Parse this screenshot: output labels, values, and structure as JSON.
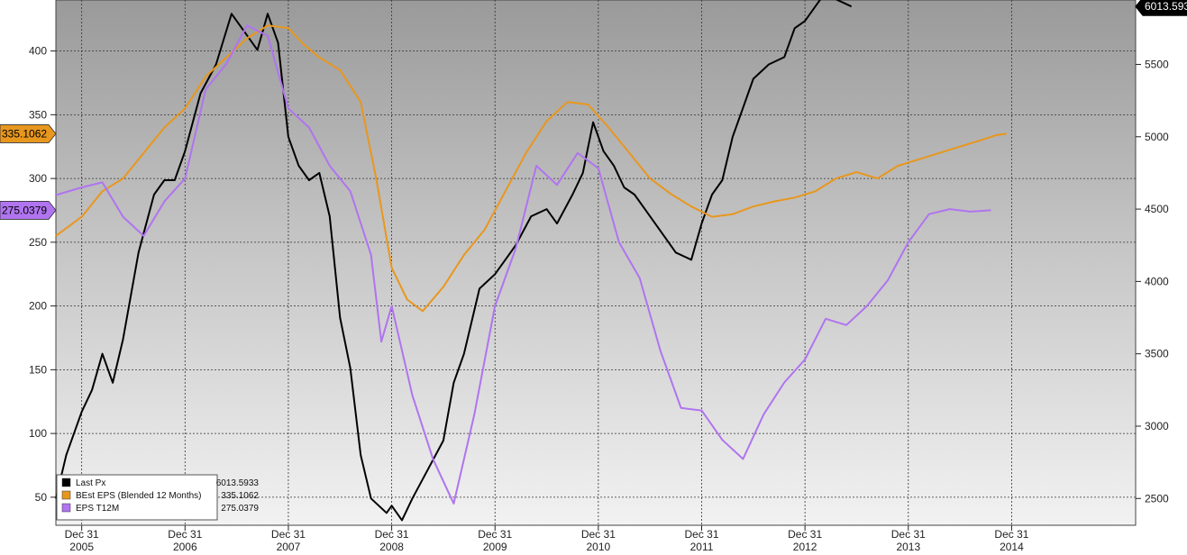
{
  "chart_data": {
    "type": "line",
    "x_labels": [
      {
        "month": "Dec 31",
        "year": "2005"
      },
      {
        "month": "Dec 31",
        "year": "2006"
      },
      {
        "month": "Dec 31",
        "year": "2007"
      },
      {
        "month": "Dec 31",
        "year": "2008"
      },
      {
        "month": "Dec 31",
        "year": "2009"
      },
      {
        "month": "Dec 31",
        "year": "2010"
      },
      {
        "month": "Dec 31",
        "year": "2011"
      },
      {
        "month": "Dec 31",
        "year": "2012"
      },
      {
        "month": "Dec 31",
        "year": "2013"
      },
      {
        "month": "Dec 31",
        "year": "2014"
      }
    ],
    "x_range": [
      2004.75,
      2015.2
    ],
    "left_axis": {
      "ticks": [
        50,
        100,
        150,
        200,
        250,
        300,
        350,
        400
      ],
      "range": [
        28,
        440
      ]
    },
    "right_axis": {
      "ticks": [
        2500,
        3000,
        3500,
        4000,
        4500,
        5000,
        5500
      ],
      "range": [
        2315,
        5945
      ]
    },
    "gridlines": true,
    "legend_position": "bottom-left",
    "series": [
      {
        "name": "Last Px",
        "value": "6013.5933",
        "color": "#000000",
        "axis": "right",
        "tag": "6013.593",
        "points": [
          [
            2004.75,
            2500
          ],
          [
            2004.85,
            2800
          ],
          [
            2005.0,
            3100
          ],
          [
            2005.1,
            3250
          ],
          [
            2005.2,
            3500
          ],
          [
            2005.3,
            3300
          ],
          [
            2005.4,
            3600
          ],
          [
            2005.55,
            4200
          ],
          [
            2005.7,
            4600
          ],
          [
            2005.8,
            4700
          ],
          [
            2005.9,
            4700
          ],
          [
            2006.0,
            4900
          ],
          [
            2006.15,
            5300
          ],
          [
            2006.3,
            5500
          ],
          [
            2006.45,
            5850
          ],
          [
            2006.55,
            5750
          ],
          [
            2006.7,
            5600
          ],
          [
            2006.8,
            5850
          ],
          [
            2006.9,
            5650
          ],
          [
            2007.0,
            5000
          ],
          [
            2007.1,
            4800
          ],
          [
            2007.2,
            4700
          ],
          [
            2007.3,
            4750
          ],
          [
            2007.4,
            4450
          ],
          [
            2007.5,
            3750
          ],
          [
            2007.6,
            3400
          ],
          [
            2007.7,
            2800
          ],
          [
            2007.8,
            2500
          ],
          [
            2007.95,
            2400
          ],
          [
            2008.0,
            2450
          ],
          [
            2008.1,
            2350
          ],
          [
            2008.2,
            2500
          ],
          [
            2008.35,
            2700
          ],
          [
            2008.5,
            2900
          ],
          [
            2008.6,
            3300
          ],
          [
            2008.7,
            3500
          ],
          [
            2008.85,
            3950
          ],
          [
            2009.0,
            4050
          ],
          [
            2009.1,
            4150
          ],
          [
            2009.2,
            4250
          ],
          [
            2009.35,
            4450
          ],
          [
            2009.5,
            4500
          ],
          [
            2009.6,
            4400
          ],
          [
            2009.75,
            4600
          ],
          [
            2009.85,
            4750
          ],
          [
            2009.95,
            5100
          ],
          [
            2010.05,
            4900
          ],
          [
            2010.15,
            4800
          ],
          [
            2010.25,
            4650
          ],
          [
            2010.35,
            4600
          ],
          [
            2010.45,
            4500
          ],
          [
            2010.55,
            4400
          ],
          [
            2010.65,
            4300
          ],
          [
            2010.75,
            4200
          ],
          [
            2010.9,
            4150
          ],
          [
            2011.0,
            4400
          ],
          [
            2011.1,
            4600
          ],
          [
            2011.2,
            4700
          ],
          [
            2011.3,
            5000
          ],
          [
            2011.4,
            5200
          ],
          [
            2011.5,
            5400
          ],
          [
            2011.65,
            5500
          ],
          [
            2011.8,
            5550
          ],
          [
            2011.9,
            5750
          ],
          [
            2012.0,
            5800
          ],
          [
            2012.1,
            5900
          ],
          [
            2012.2,
            6000
          ],
          [
            2012.3,
            5950
          ],
          [
            2012.45,
            5900
          ]
        ]
      },
      {
        "name": "BEst EPS (Blended 12 Months)",
        "value": "335.1062",
        "color": "#e8971e",
        "axis": "left",
        "tag": "335.1062",
        "points": [
          [
            2004.75,
            255
          ],
          [
            2005.0,
            270
          ],
          [
            2005.2,
            290
          ],
          [
            2005.4,
            300
          ],
          [
            2005.6,
            320
          ],
          [
            2005.8,
            340
          ],
          [
            2006.0,
            355
          ],
          [
            2006.2,
            380
          ],
          [
            2006.4,
            395
          ],
          [
            2006.6,
            410
          ],
          [
            2006.8,
            420
          ],
          [
            2007.0,
            418
          ],
          [
            2007.15,
            405
          ],
          [
            2007.3,
            395
          ],
          [
            2007.5,
            385
          ],
          [
            2007.7,
            360
          ],
          [
            2007.85,
            300
          ],
          [
            2008.0,
            230
          ],
          [
            2008.15,
            205
          ],
          [
            2008.3,
            196
          ],
          [
            2008.5,
            215
          ],
          [
            2008.7,
            240
          ],
          [
            2008.9,
            260
          ],
          [
            2009.1,
            290
          ],
          [
            2009.3,
            320
          ],
          [
            2009.5,
            345
          ],
          [
            2009.7,
            360
          ],
          [
            2009.9,
            358
          ],
          [
            2010.1,
            340
          ],
          [
            2010.3,
            320
          ],
          [
            2010.5,
            300
          ],
          [
            2010.7,
            288
          ],
          [
            2010.9,
            278
          ],
          [
            2011.1,
            270
          ],
          [
            2011.3,
            272
          ],
          [
            2011.5,
            278
          ],
          [
            2011.7,
            282
          ],
          [
            2011.9,
            285
          ],
          [
            2012.1,
            290
          ],
          [
            2012.3,
            300
          ],
          [
            2012.5,
            305
          ],
          [
            2012.7,
            300
          ],
          [
            2012.9,
            310
          ],
          [
            2013.1,
            315
          ],
          [
            2013.3,
            320
          ],
          [
            2013.5,
            325
          ],
          [
            2013.7,
            330
          ],
          [
            2013.85,
            334
          ],
          [
            2013.95,
            335.1
          ]
        ]
      },
      {
        "name": "EPS T12M",
        "value": "275.0379",
        "color": "#b074f0",
        "axis": "left",
        "tag": "275.0379",
        "points": [
          [
            2004.75,
            287
          ],
          [
            2005.0,
            293
          ],
          [
            2005.2,
            297
          ],
          [
            2005.4,
            270
          ],
          [
            2005.6,
            255
          ],
          [
            2005.8,
            282
          ],
          [
            2006.0,
            300
          ],
          [
            2006.2,
            370
          ],
          [
            2006.4,
            390
          ],
          [
            2006.6,
            420
          ],
          [
            2006.8,
            412
          ],
          [
            2007.0,
            355
          ],
          [
            2007.2,
            340
          ],
          [
            2007.4,
            310
          ],
          [
            2007.6,
            290
          ],
          [
            2007.8,
            240
          ],
          [
            2007.9,
            172
          ],
          [
            2008.0,
            200
          ],
          [
            2008.2,
            130
          ],
          [
            2008.4,
            80
          ],
          [
            2008.6,
            45
          ],
          [
            2008.8,
            115
          ],
          [
            2009.0,
            200
          ],
          [
            2009.2,
            245
          ],
          [
            2009.4,
            310
          ],
          [
            2009.6,
            295
          ],
          [
            2009.8,
            320
          ],
          [
            2010.0,
            308
          ],
          [
            2010.2,
            250
          ],
          [
            2010.4,
            222
          ],
          [
            2010.6,
            165
          ],
          [
            2010.8,
            120
          ],
          [
            2011.0,
            118
          ],
          [
            2011.2,
            95
          ],
          [
            2011.4,
            80
          ],
          [
            2011.6,
            115
          ],
          [
            2011.8,
            140
          ],
          [
            2012.0,
            158
          ],
          [
            2012.2,
            190
          ],
          [
            2012.4,
            185
          ],
          [
            2012.6,
            200
          ],
          [
            2012.8,
            220
          ],
          [
            2013.0,
            250
          ],
          [
            2013.2,
            272
          ],
          [
            2013.4,
            276
          ],
          [
            2013.6,
            274
          ],
          [
            2013.8,
            275.04
          ]
        ]
      }
    ]
  }
}
